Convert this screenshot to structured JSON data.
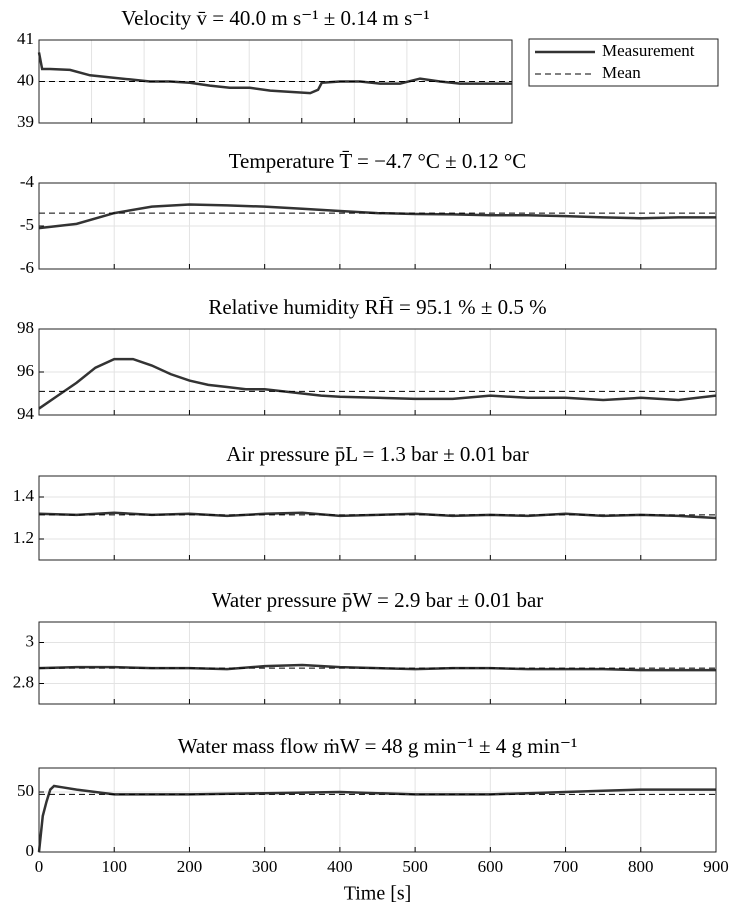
{
  "chart_data": [
    {
      "type": "line",
      "title": "Velocity v̄ = 40.0 m s⁻¹ ± 0.14 m s⁻¹",
      "legend": "outside-upper-right",
      "grid": true,
      "xlim": [
        0,
        900
      ],
      "xticks": [
        0,
        100,
        200,
        300,
        400,
        500,
        600,
        700,
        800,
        900
      ],
      "ylim": [
        39,
        41
      ],
      "yticks": [
        39,
        40,
        41
      ],
      "x": [
        0,
        6,
        21,
        59,
        97,
        135,
        173,
        211,
        249,
        287,
        325,
        363,
        401,
        440,
        478,
        516,
        531,
        538,
        573,
        611,
        649,
        687,
        725,
        763,
        801,
        839,
        877,
        900
      ],
      "series": [
        {
          "name": "Measurement",
          "color": "#333333",
          "linestyle": "solid",
          "values": [
            40.7,
            40.3,
            40.3,
            40.28,
            40.15,
            40.1,
            40.05,
            40.0,
            40.0,
            39.97,
            39.9,
            39.85,
            39.85,
            39.78,
            39.75,
            39.72,
            39.8,
            39.97,
            40.0,
            40.0,
            39.95,
            39.95,
            40.07,
            40.0,
            39.95,
            39.95,
            39.95,
            39.95
          ]
        },
        {
          "name": "Mean",
          "color": "#000000",
          "linestyle": "dashed",
          "values": [
            40.0,
            40.0,
            40.0,
            40.0,
            40.0,
            40.0,
            40.0,
            40.0,
            40.0,
            40.0,
            40.0,
            40.0,
            40.0,
            40.0,
            40.0,
            40.0,
            40.0,
            40.0,
            40.0,
            40.0,
            40.0,
            40.0,
            40.0,
            40.0,
            40.0,
            40.0,
            40.0,
            40.0
          ]
        }
      ]
    },
    {
      "type": "line",
      "title": "Temperature T̄ = −4.7 °C ± 0.12 °C",
      "grid": true,
      "xlim": [
        0,
        900
      ],
      "xticks": [
        0,
        100,
        200,
        300,
        400,
        500,
        600,
        700,
        800,
        900
      ],
      "ylim": [
        -6,
        -4
      ],
      "yticks": [
        -6,
        -5,
        -4
      ],
      "x": [
        0,
        50,
        100,
        150,
        200,
        250,
        300,
        350,
        400,
        450,
        500,
        550,
        600,
        650,
        700,
        750,
        800,
        850,
        900
      ],
      "series": [
        {
          "name": "Measurement",
          "color": "#333333",
          "linestyle": "solid",
          "values": [
            -5.05,
            -4.95,
            -4.7,
            -4.55,
            -4.5,
            -4.52,
            -4.55,
            -4.6,
            -4.65,
            -4.7,
            -4.72,
            -4.73,
            -4.75,
            -4.75,
            -4.77,
            -4.8,
            -4.82,
            -4.8,
            -4.8
          ]
        },
        {
          "name": "Mean",
          "color": "#000000",
          "linestyle": "dashed",
          "values": [
            -4.7,
            -4.7,
            -4.7,
            -4.7,
            -4.7,
            -4.7,
            -4.7,
            -4.7,
            -4.7,
            -4.7,
            -4.7,
            -4.7,
            -4.7,
            -4.7,
            -4.7,
            -4.7,
            -4.7,
            -4.7,
            -4.7
          ]
        }
      ]
    },
    {
      "type": "line",
      "title": "Relative humidity RH̄ = 95.1 % ± 0.5 %",
      "grid": true,
      "xlim": [
        0,
        900
      ],
      "xticks": [
        0,
        100,
        200,
        300,
        400,
        500,
        600,
        700,
        800,
        900
      ],
      "ylim": [
        94,
        98
      ],
      "yticks": [
        94,
        96,
        98
      ],
      "x": [
        0,
        25,
        50,
        75,
        100,
        125,
        150,
        175,
        200,
        225,
        250,
        275,
        300,
        325,
        350,
        375,
        400,
        450,
        500,
        550,
        600,
        650,
        700,
        750,
        800,
        850,
        900
      ],
      "series": [
        {
          "name": "Measurement",
          "color": "#333333",
          "linestyle": "solid",
          "values": [
            94.3,
            94.9,
            95.5,
            96.2,
            96.6,
            96.6,
            96.3,
            95.9,
            95.6,
            95.4,
            95.3,
            95.2,
            95.2,
            95.1,
            95.0,
            94.9,
            94.85,
            94.8,
            94.75,
            94.75,
            94.9,
            94.8,
            94.8,
            94.7,
            94.8,
            94.7,
            94.9
          ]
        },
        {
          "name": "Mean",
          "color": "#000000",
          "linestyle": "dashed",
          "values": [
            95.1,
            95.1,
            95.1,
            95.1,
            95.1,
            95.1,
            95.1,
            95.1,
            95.1,
            95.1,
            95.1,
            95.1,
            95.1,
            95.1,
            95.1,
            95.1,
            95.1,
            95.1,
            95.1,
            95.1,
            95.1,
            95.1,
            95.1,
            95.1,
            95.1,
            95.1,
            95.1
          ]
        }
      ]
    },
    {
      "type": "line",
      "title": "Air pressure p̄L = 1.3 bar ± 0.01 bar",
      "grid": true,
      "xlim": [
        0,
        900
      ],
      "xticks": [
        0,
        100,
        200,
        300,
        400,
        500,
        600,
        700,
        800,
        900
      ],
      "ylim": [
        1.1,
        1.5
      ],
      "yticks": [
        1.2,
        1.4
      ],
      "x": [
        0,
        50,
        100,
        150,
        200,
        250,
        300,
        350,
        400,
        450,
        500,
        550,
        600,
        650,
        700,
        750,
        800,
        850,
        900
      ],
      "series": [
        {
          "name": "Measurement",
          "color": "#333333",
          "linestyle": "solid",
          "values": [
            1.32,
            1.315,
            1.325,
            1.315,
            1.32,
            1.31,
            1.32,
            1.325,
            1.31,
            1.315,
            1.32,
            1.31,
            1.315,
            1.31,
            1.32,
            1.31,
            1.315,
            1.31,
            1.3
          ]
        },
        {
          "name": "Mean",
          "color": "#000000",
          "linestyle": "dashed",
          "values": [
            1.315,
            1.315,
            1.315,
            1.315,
            1.315,
            1.315,
            1.315,
            1.315,
            1.315,
            1.315,
            1.315,
            1.315,
            1.315,
            1.315,
            1.315,
            1.315,
            1.315,
            1.315,
            1.315
          ]
        }
      ]
    },
    {
      "type": "line",
      "title": "Water pressure p̄W = 2.9 bar ± 0.01 bar",
      "grid": true,
      "xlim": [
        0,
        900
      ],
      "xticks": [
        0,
        100,
        200,
        300,
        400,
        500,
        600,
        700,
        800,
        900
      ],
      "ylim": [
        2.7,
        3.1
      ],
      "yticks": [
        2.8,
        3
      ],
      "x": [
        0,
        50,
        100,
        150,
        200,
        250,
        300,
        350,
        400,
        450,
        500,
        550,
        600,
        650,
        700,
        750,
        800,
        850,
        900
      ],
      "series": [
        {
          "name": "Measurement",
          "color": "#333333",
          "linestyle": "solid",
          "values": [
            2.875,
            2.88,
            2.88,
            2.875,
            2.875,
            2.87,
            2.885,
            2.89,
            2.88,
            2.875,
            2.87,
            2.875,
            2.875,
            2.87,
            2.87,
            2.87,
            2.865,
            2.865,
            2.865
          ]
        },
        {
          "name": "Mean",
          "color": "#000000",
          "linestyle": "dashed",
          "values": [
            2.875,
            2.875,
            2.875,
            2.875,
            2.875,
            2.875,
            2.875,
            2.875,
            2.875,
            2.875,
            2.875,
            2.875,
            2.875,
            2.875,
            2.875,
            2.875,
            2.875,
            2.875,
            2.875
          ]
        }
      ]
    },
    {
      "type": "line",
      "title": "Water mass flow ṁW = 48 g min⁻¹ ± 4 g min⁻¹",
      "grid": true,
      "xlabel": "Time [s]",
      "xlim": [
        0,
        900
      ],
      "xticks": [
        0,
        100,
        200,
        300,
        400,
        500,
        600,
        700,
        800,
        900
      ],
      "ylim": [
        0,
        70
      ],
      "yticks": [
        0,
        50
      ],
      "x": [
        0,
        5,
        10,
        15,
        20,
        30,
        50,
        75,
        100,
        150,
        200,
        300,
        400,
        500,
        600,
        700,
        750,
        800,
        850,
        900
      ],
      "series": [
        {
          "name": "Measurement",
          "color": "#333333",
          "linestyle": "solid",
          "values": [
            0,
            30,
            42,
            52,
            55,
            54,
            52,
            50,
            48,
            48,
            48,
            49,
            50,
            48,
            48,
            50,
            51,
            52,
            52,
            52
          ]
        },
        {
          "name": "Mean",
          "color": "#000000",
          "linestyle": "dashed",
          "values": [
            48,
            48,
            48,
            48,
            48,
            48,
            48,
            48,
            48,
            48,
            48,
            48,
            48,
            48,
            48,
            48,
            48,
            48,
            48,
            48
          ]
        }
      ]
    }
  ]
}
